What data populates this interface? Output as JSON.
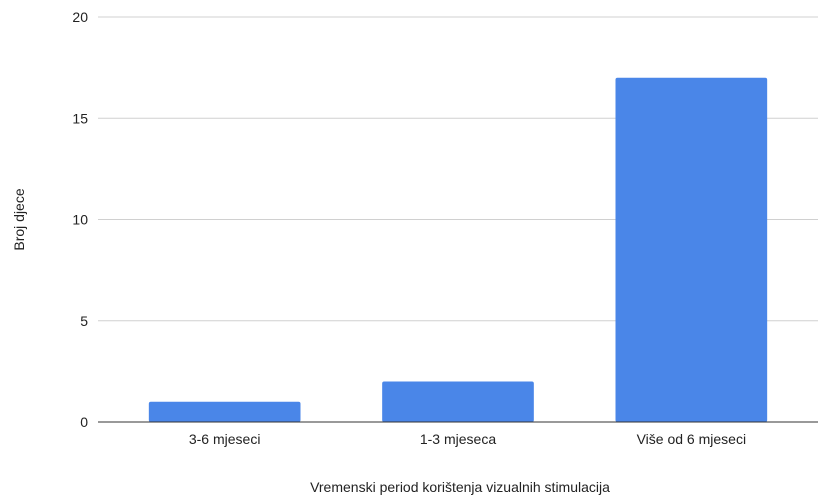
{
  "chart_data": {
    "type": "bar",
    "title": "",
    "xlabel": "Vremenski period korištenja vizualnih stimulacija",
    "ylabel": "Broj djece",
    "categories": [
      "3-6 mjeseci",
      "1-3 mjeseca",
      "Više od 6 mjeseci"
    ],
    "values": [
      1,
      2,
      17
    ],
    "ylim": [
      0,
      20
    ],
    "yticks": [
      0,
      5,
      10,
      15,
      20
    ],
    "grid": true,
    "legend": "none",
    "bar_color": "#4a86e8"
  }
}
